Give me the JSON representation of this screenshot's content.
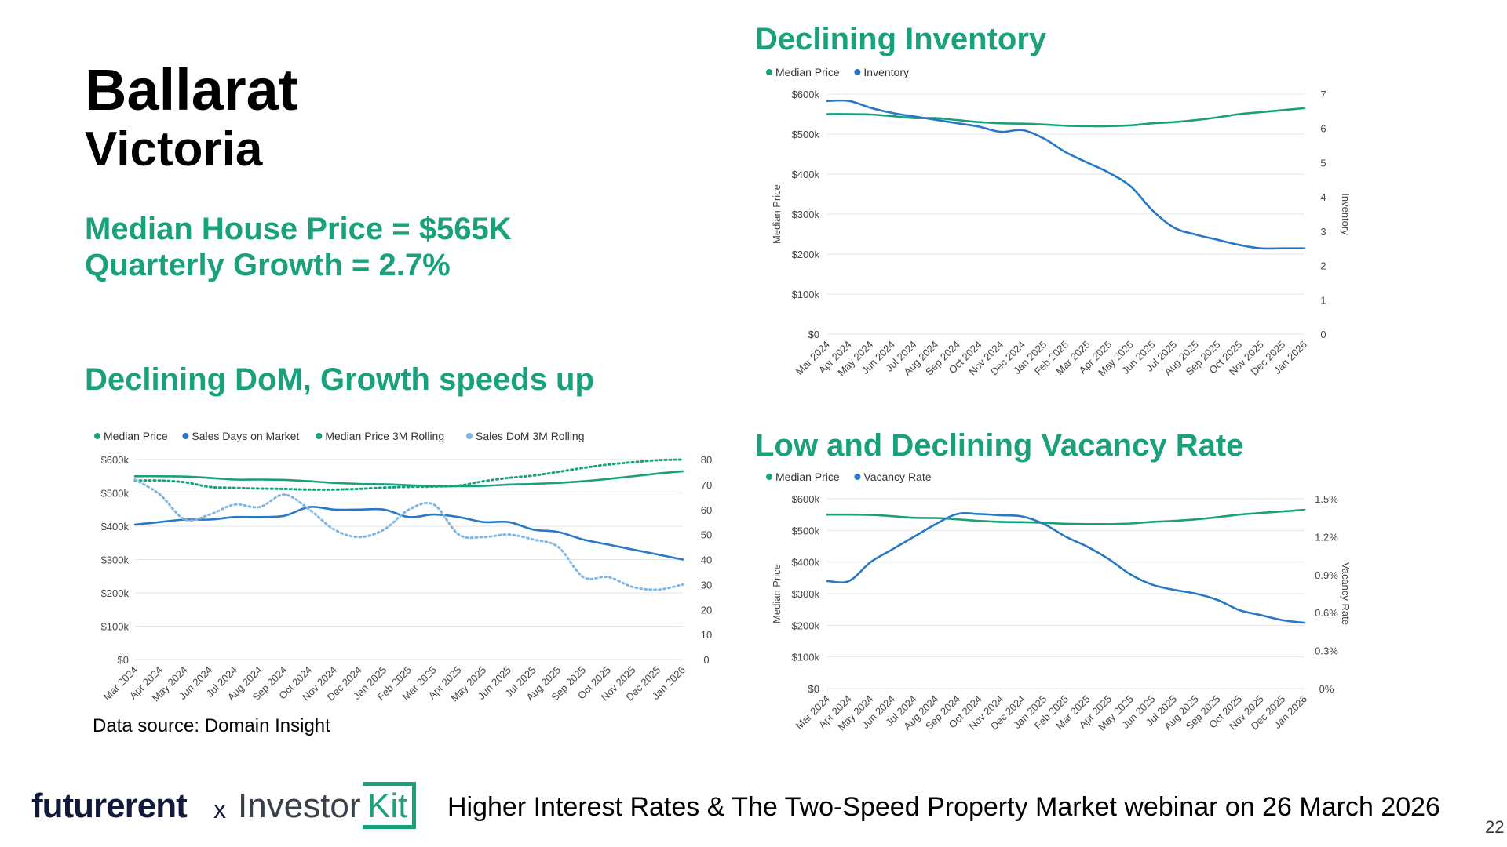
{
  "header": {
    "city": "Ballarat",
    "state": "Victoria",
    "median_house_price": "Median House Price = $565K",
    "quarterly_growth": "Quarterly Growth = 2.7%"
  },
  "data_source": "Data source: Domain Insight",
  "footer": {
    "logo_futurerent": "futurerent",
    "separator": "x",
    "logo_investor": "Investor",
    "logo_kit": "Kit",
    "webinar_text": "Higher Interest Rates & The Two-Speed Property Market webinar on 26 March 2026",
    "page_number": "22"
  },
  "colors": {
    "green": "#1aa17c",
    "blue": "#2878c8",
    "light_blue": "#7fb8e6",
    "navy": "#111a3a"
  },
  "chart_data": [
    {
      "id": "dom",
      "type": "line",
      "title": "Declining DoM, Growth speeds up",
      "categories": [
        "Mar 2024",
        "Apr 2024",
        "May 2024",
        "Jun 2024",
        "Jul 2024",
        "Aug 2024",
        "Sep 2024",
        "Oct 2024",
        "Nov 2024",
        "Dec 2024",
        "Jan 2025",
        "Feb 2025",
        "Mar 2025",
        "Apr 2025",
        "May 2025",
        "Jun 2025",
        "Jul 2025",
        "Aug 2025",
        "Sep 2025",
        "Oct 2025",
        "Nov 2025",
        "Dec 2025",
        "Jan 2026"
      ],
      "left_axis": {
        "ticks": [
          "$0",
          "$100k",
          "$200k",
          "$300k",
          "$400k",
          "$500k",
          "$600k"
        ],
        "min": 0,
        "max": 600000
      },
      "right_axis": {
        "ticks": [
          "0",
          "10",
          "20",
          "30",
          "40",
          "50",
          "60",
          "70",
          "80"
        ],
        "min": 0,
        "max": 80,
        "label": ""
      },
      "left_label": "",
      "legend": [
        "Median Price",
        "Sales Days on Market",
        "Median Price 3M Rolling",
        "Sales DoM 3M Rolling"
      ],
      "series": [
        {
          "name": "Median Price",
          "axis": "left",
          "style": "solid",
          "color": "#1aa17c",
          "values": [
            550000,
            550000,
            549000,
            545000,
            540000,
            540000,
            539000,
            535000,
            530000,
            527000,
            526000,
            523000,
            520000,
            520000,
            521000,
            525000,
            527000,
            530000,
            535000,
            542000,
            550000,
            558000,
            565000
          ]
        },
        {
          "name": "Sales Days on Market",
          "axis": "right",
          "style": "solid",
          "color": "#2878c8",
          "values": [
            54,
            55,
            56,
            56,
            57,
            57,
            57.5,
            61,
            60,
            60,
            60,
            57,
            58,
            57,
            55,
            55,
            52,
            51,
            48,
            46,
            44,
            42,
            40
          ]
        },
        {
          "name": "Median Price 3M Rolling",
          "axis": "left",
          "style": "dotted",
          "color": "#1aa17c",
          "values": [
            537000,
            537000,
            532000,
            518000,
            515000,
            513000,
            512000,
            510000,
            510000,
            512000,
            516000,
            518000,
            519000,
            522000,
            535000,
            545000,
            552000,
            563000,
            575000,
            585000,
            592000,
            598000,
            600000
          ]
        },
        {
          "name": "Sales DoM 3M Rolling",
          "axis": "right",
          "style": "dotted",
          "color": "#7fb8e6",
          "values": [
            72,
            66,
            56,
            58,
            62,
            61,
            66,
            60,
            52,
            49,
            52,
            60,
            62,
            50,
            49,
            50,
            48,
            45,
            33,
            33,
            29,
            28,
            30
          ]
        }
      ]
    },
    {
      "id": "inv",
      "type": "line",
      "title": "Declining Inventory",
      "categories": [
        "Mar 2024",
        "Apr 2024",
        "May 2024",
        "Jun 2024",
        "Jul 2024",
        "Aug 2024",
        "Sep 2024",
        "Oct 2024",
        "Nov 2024",
        "Dec 2024",
        "Jan 2025",
        "Feb 2025",
        "Mar 2025",
        "Apr 2025",
        "May 2025",
        "Jun 2025",
        "Jul 2025",
        "Aug 2025",
        "Sep 2025",
        "Oct 2025",
        "Nov 2025",
        "Dec 2025",
        "Jan 2026"
      ],
      "left_axis": {
        "ticks": [
          "$0",
          "$100k",
          "$200k",
          "$300k",
          "$400k",
          "$500k",
          "$600k"
        ],
        "min": 0,
        "max": 600000
      },
      "right_axis": {
        "ticks": [
          "0",
          "1",
          "2",
          "3",
          "4",
          "5",
          "6",
          "7"
        ],
        "min": 0,
        "max": 7,
        "label": "Inventory"
      },
      "left_label": "Median Price",
      "legend": [
        "Median Price",
        "Inventory"
      ],
      "series": [
        {
          "name": "Median Price",
          "axis": "left",
          "style": "solid",
          "color": "#1aa17c",
          "values": [
            550000,
            550000,
            549000,
            545000,
            540000,
            540000,
            535000,
            530000,
            527000,
            526000,
            524000,
            521000,
            520000,
            520000,
            522000,
            527000,
            530000,
            535000,
            542000,
            550000,
            555000,
            560000,
            565000
          ]
        },
        {
          "name": "Inventory",
          "axis": "right",
          "style": "solid",
          "color": "#2878c8",
          "values": [
            6.8,
            6.8,
            6.6,
            6.45,
            6.35,
            6.25,
            6.15,
            6.05,
            5.9,
            5.95,
            5.7,
            5.3,
            5.0,
            4.7,
            4.3,
            3.6,
            3.1,
            2.9,
            2.75,
            2.6,
            2.5,
            2.5,
            2.5
          ]
        }
      ]
    },
    {
      "id": "vac",
      "type": "line",
      "title": "Low and Declining Vacancy Rate",
      "categories": [
        "Mar 2024",
        "Apr 2024",
        "May 2024",
        "Jun 2024",
        "Jul 2024",
        "Aug 2024",
        "Sep 2024",
        "Oct 2024",
        "Nov 2024",
        "Dec 2024",
        "Jan 2025",
        "Feb 2025",
        "Mar 2025",
        "Apr 2025",
        "May 2025",
        "Jun 2025",
        "Jul 2025",
        "Aug 2025",
        "Sep 2025",
        "Oct 2025",
        "Nov 2025",
        "Dec 2025",
        "Jan 2026"
      ],
      "left_axis": {
        "ticks": [
          "$0",
          "$100k",
          "$200k",
          "$300k",
          "$400k",
          "$500k",
          "$600k"
        ],
        "min": 0,
        "max": 600000
      },
      "right_axis": {
        "ticks": [
          "0%",
          "0.3%",
          "0.6%",
          "0.9%",
          "1.2%",
          "1.5%"
        ],
        "min": 0,
        "max": 1.5,
        "label": "Vacancy Rate"
      },
      "left_label": "Median Price",
      "legend": [
        "Median Price",
        "Vacancy Rate"
      ],
      "series": [
        {
          "name": "Median Price",
          "axis": "left",
          "style": "solid",
          "color": "#1aa17c",
          "values": [
            550000,
            550000,
            549000,
            545000,
            540000,
            539000,
            535000,
            530000,
            527000,
            526000,
            524000,
            521000,
            520000,
            520000,
            522000,
            527000,
            530000,
            535000,
            542000,
            550000,
            555000,
            560000,
            565000
          ]
        },
        {
          "name": "Vacancy Rate",
          "axis": "right",
          "style": "solid",
          "color": "#2878c8",
          "values": [
            0.85,
            0.85,
            1.0,
            1.1,
            1.2,
            1.3,
            1.38,
            1.38,
            1.37,
            1.36,
            1.3,
            1.2,
            1.12,
            1.02,
            0.9,
            0.82,
            0.78,
            0.75,
            0.7,
            0.62,
            0.58,
            0.54,
            0.52
          ]
        }
      ]
    }
  ]
}
